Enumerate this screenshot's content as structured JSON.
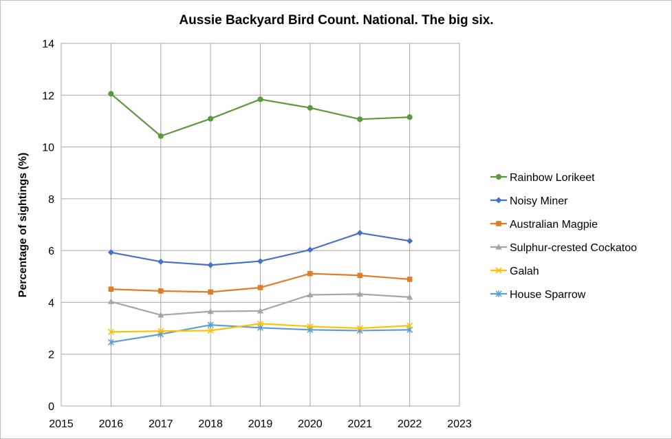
{
  "chart_data": {
    "type": "line",
    "title": "Aussie Backyard Bird Count. National. The big six.",
    "xlabel": "",
    "ylabel": "Percentage of sightings (%)",
    "xlim": [
      2015,
      2023
    ],
    "ylim": [
      0,
      14
    ],
    "x_ticks": [
      "2015",
      "2016",
      "2017",
      "2018",
      "2019",
      "2020",
      "2021",
      "2022",
      "2023"
    ],
    "y_ticks": [
      "0",
      "2",
      "4",
      "6",
      "8",
      "10",
      "12",
      "14"
    ],
    "grid": "on",
    "legend_position": "right",
    "x": [
      2016,
      2017,
      2018,
      2019,
      2020,
      2021,
      2022
    ],
    "series": [
      {
        "name": "Rainbow Lorikeet",
        "color": "#5b9a3c",
        "marker": "circle",
        "values": [
          12.05,
          10.42,
          11.09,
          11.84,
          11.51,
          11.07,
          11.15
        ]
      },
      {
        "name": "Noisy Miner",
        "color": "#4472c4",
        "marker": "diamond",
        "values": [
          5.93,
          5.57,
          5.44,
          5.59,
          6.03,
          6.68,
          6.37
        ]
      },
      {
        "name": "Australian Magpie",
        "color": "#e07b28",
        "marker": "square",
        "values": [
          4.51,
          4.44,
          4.4,
          4.57,
          5.11,
          5.04,
          4.89
        ]
      },
      {
        "name": "Sulphur-crested Cockatoo",
        "color": "#a5a5a5",
        "marker": "triangle",
        "values": [
          4.03,
          3.51,
          3.65,
          3.67,
          4.29,
          4.32,
          4.2
        ]
      },
      {
        "name": "Galah",
        "color": "#ffc000",
        "marker": "x",
        "values": [
          2.86,
          2.89,
          2.91,
          3.18,
          3.07,
          3.0,
          3.1
        ]
      },
      {
        "name": "House Sparrow",
        "color": "#5b9bd5",
        "marker": "star",
        "values": [
          2.46,
          2.77,
          3.13,
          3.02,
          2.94,
          2.91,
          2.94
        ]
      }
    ]
  }
}
